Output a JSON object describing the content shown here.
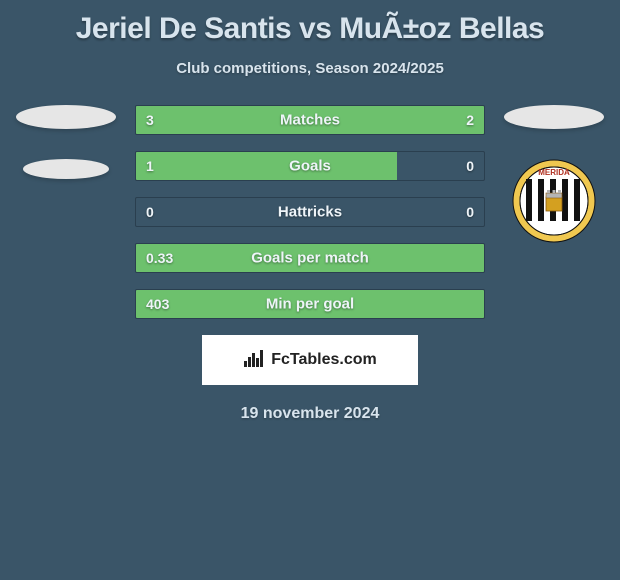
{
  "title": "Jeriel De Santis vs MuÃ±oz Bellas",
  "subtitle": "Club competitions, Season 2024/2025",
  "background_color": "#3a5568",
  "bar_fill_color": "#6dc16d",
  "bar_border_color": "#2a3f4f",
  "text_color": "#d8e4ed",
  "stats": [
    {
      "label": "Matches",
      "left_val": "3",
      "right_val": "2",
      "left_pct": 60,
      "right_pct": 40
    },
    {
      "label": "Goals",
      "left_val": "1",
      "right_val": "0",
      "left_pct": 75,
      "right_pct": 0
    },
    {
      "label": "Hattricks",
      "left_val": "0",
      "right_val": "0",
      "left_pct": 0,
      "right_pct": 0
    },
    {
      "label": "Goals per match",
      "left_val": "0.33",
      "right_val": "",
      "left_pct": 100,
      "right_pct": 0
    },
    {
      "label": "Min per goal",
      "left_val": "403",
      "right_val": "",
      "left_pct": 100,
      "right_pct": 0
    }
  ],
  "brand": "FcTables.com",
  "date": "19 november 2024",
  "club_logo": {
    "name": "MERIDA",
    "outer_color": "#f0c850",
    "stripe_black": "#111111",
    "stripe_white": "#ffffff",
    "text_color": "#b03020"
  }
}
